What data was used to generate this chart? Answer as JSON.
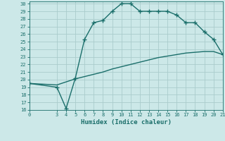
{
  "xlabel": "Humidex (Indice chaleur)",
  "bg_color": "#cce8e8",
  "grid_color": "#aacccc",
  "line_color": "#1a6e6a",
  "xlim": [
    0,
    21
  ],
  "ylim": [
    16,
    30.3
  ],
  "xticks": [
    0,
    3,
    4,
    5,
    6,
    7,
    8,
    9,
    10,
    11,
    12,
    13,
    14,
    15,
    16,
    17,
    18,
    19,
    20,
    21
  ],
  "yticks": [
    16,
    17,
    18,
    19,
    20,
    21,
    22,
    23,
    24,
    25,
    26,
    27,
    28,
    29,
    30
  ],
  "top_curve_x": [
    0,
    3,
    4,
    5,
    6,
    7,
    8,
    9,
    10,
    11,
    12,
    13,
    14,
    15,
    16,
    17,
    18,
    19,
    20,
    21
  ],
  "top_curve_y": [
    19.5,
    19.0,
    16.2,
    20.2,
    25.3,
    27.5,
    27.8,
    29.0,
    30.0,
    30.0,
    29.0,
    29.0,
    29.0,
    29.0,
    28.5,
    27.5,
    27.5,
    26.3,
    25.3,
    23.3
  ],
  "bot_curve_x": [
    0,
    3,
    4,
    5,
    6,
    7,
    8,
    9,
    10,
    11,
    12,
    13,
    14,
    15,
    16,
    17,
    18,
    19,
    20,
    21
  ],
  "bot_curve_y": [
    19.5,
    19.3,
    19.7,
    20.1,
    20.4,
    20.7,
    21.0,
    21.4,
    21.7,
    22.0,
    22.3,
    22.6,
    22.9,
    23.1,
    23.3,
    23.5,
    23.6,
    23.7,
    23.7,
    23.3
  ],
  "marker": "+",
  "markersize": 4,
  "linewidth": 1.0
}
